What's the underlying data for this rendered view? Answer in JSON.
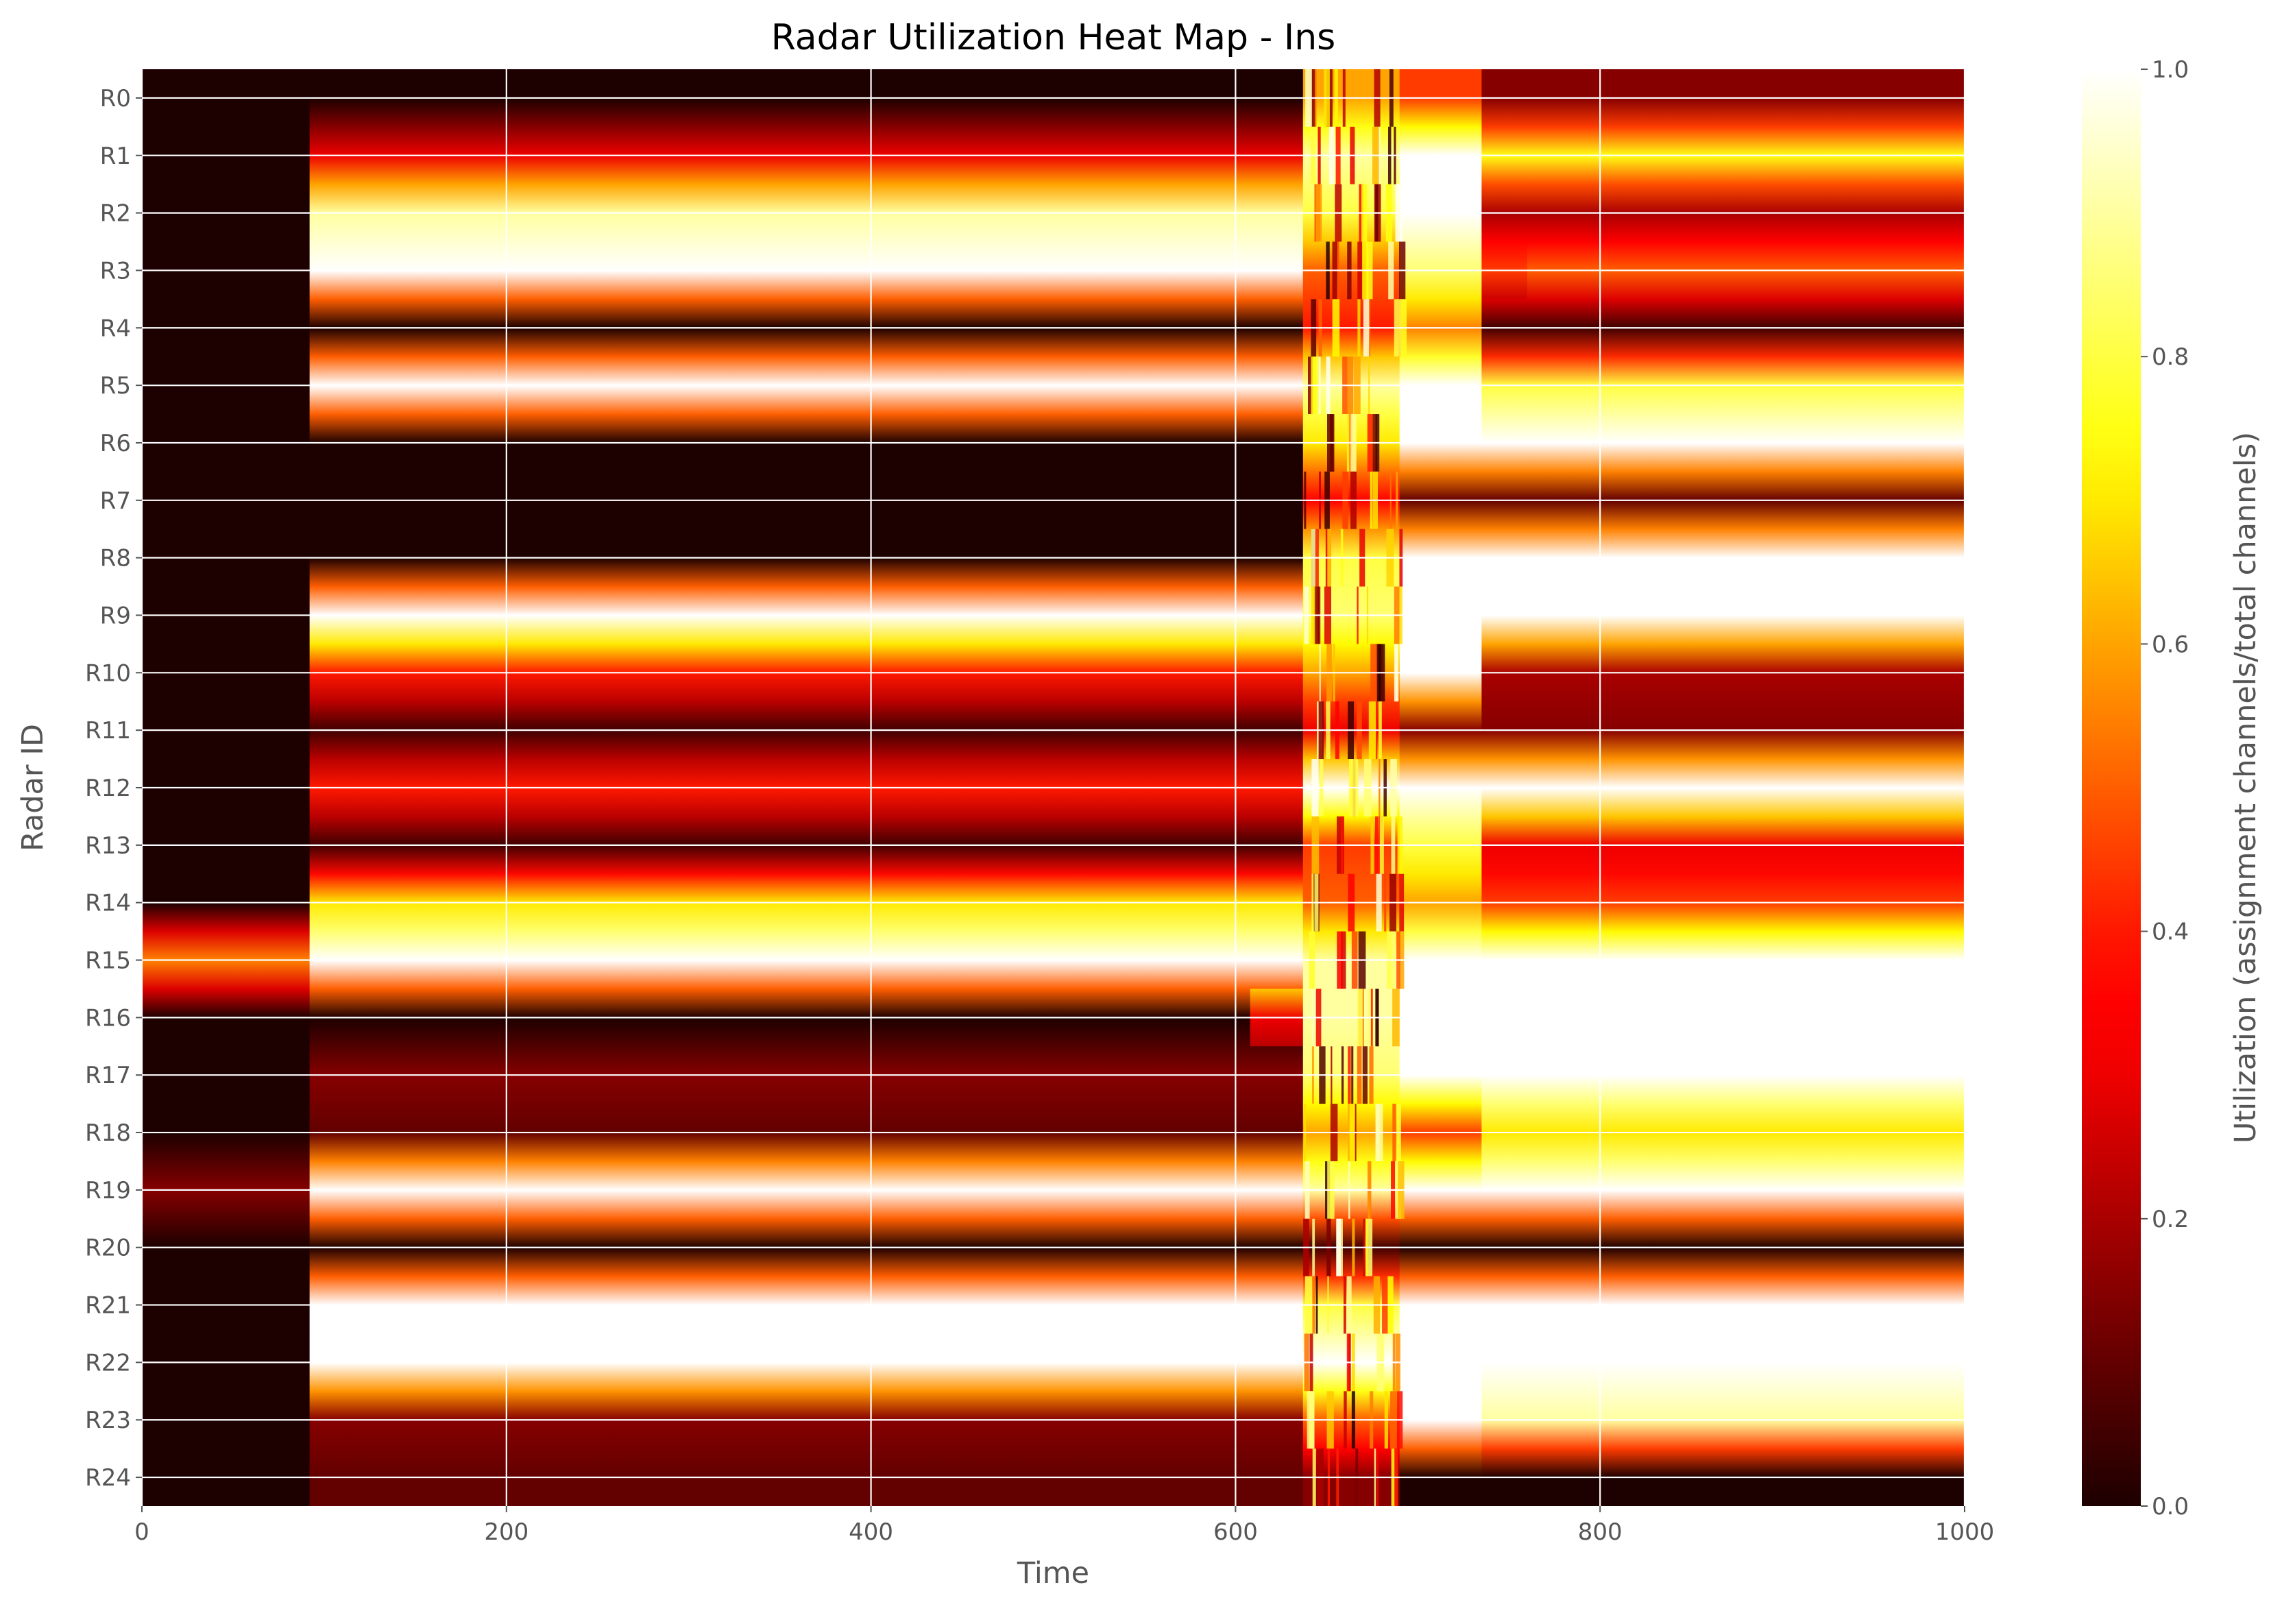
{
  "chart_data": {
    "type": "heatmap",
    "title": "Radar Utilization Heat Map - Ins",
    "xlabel": "Time",
    "ylabel": "Radar ID",
    "xlim": [
      0,
      1000
    ],
    "x_ticks": [
      "0",
      "200",
      "400",
      "600",
      "800",
      "1000"
    ],
    "rows": [
      "R0",
      "R1",
      "R2",
      "R3",
      "R4",
      "R5",
      "R6",
      "R7",
      "R8",
      "R9",
      "R10",
      "R11",
      "R12",
      "R13",
      "R14",
      "R15",
      "R16",
      "R17",
      "R18",
      "R19",
      "R20",
      "R21",
      "R22",
      "R23",
      "R24"
    ],
    "colorbar": {
      "label": "Utilization (assignment channels/total channels)",
      "range": [
        0.0,
        1.0
      ],
      "ticks": [
        "0.0",
        "0.2",
        "0.4",
        "0.6",
        "0.8",
        "1.0"
      ],
      "colormap": "hot"
    },
    "grid": true,
    "segments": {
      "R0": [
        [
          0,
          92,
          0.0
        ],
        [
          92,
          637,
          0.0
        ],
        [
          637,
          690,
          0.6
        ],
        [
          690,
          735,
          0.45
        ],
        [
          735,
          1000,
          0.15
        ]
      ],
      "R1": [
        [
          0,
          92,
          0.0
        ],
        [
          92,
          637,
          0.3
        ],
        [
          637,
          690,
          0.9
        ],
        [
          690,
          735,
          1.0
        ],
        [
          735,
          1000,
          0.75
        ]
      ],
      "R2": [
        [
          0,
          92,
          0.0
        ],
        [
          92,
          637,
          0.9
        ],
        [
          637,
          690,
          0.8
        ],
        [
          690,
          735,
          1.0
        ],
        [
          735,
          1000,
          0.2
        ]
      ],
      "R3": [
        [
          0,
          92,
          0.0
        ],
        [
          92,
          637,
          1.0
        ],
        [
          637,
          690,
          0.5
        ],
        [
          690,
          735,
          0.85
        ],
        [
          735,
          760,
          0.45
        ],
        [
          760,
          1000,
          0.5
        ]
      ],
      "R4": [
        [
          0,
          92,
          0.0
        ],
        [
          92,
          637,
          0.0
        ],
        [
          637,
          690,
          0.4
        ],
        [
          690,
          735,
          0.55
        ],
        [
          735,
          1000,
          0.05
        ]
      ],
      "R5": [
        [
          0,
          92,
          0.0
        ],
        [
          92,
          637,
          1.0
        ],
        [
          637,
          690,
          0.9
        ],
        [
          690,
          735,
          1.0
        ],
        [
          735,
          1000,
          0.8
        ]
      ],
      "R6": [
        [
          0,
          92,
          0.0
        ],
        [
          92,
          637,
          0.0
        ],
        [
          637,
          690,
          0.7
        ],
        [
          690,
          735,
          1.0
        ],
        [
          735,
          1000,
          1.0
        ]
      ],
      "R7": [
        [
          0,
          92,
          0.0
        ],
        [
          92,
          637,
          0.0
        ],
        [
          637,
          690,
          0.35
        ],
        [
          690,
          735,
          0.1
        ],
        [
          735,
          1000,
          0.1
        ]
      ],
      "R8": [
        [
          0,
          92,
          0.0
        ],
        [
          92,
          637,
          0.0
        ],
        [
          637,
          690,
          0.8
        ],
        [
          690,
          735,
          1.0
        ],
        [
          735,
          1000,
          1.0
        ]
      ],
      "R9": [
        [
          0,
          92,
          0.0
        ],
        [
          92,
          637,
          1.0
        ],
        [
          637,
          690,
          0.85
        ],
        [
          690,
          735,
          1.0
        ],
        [
          735,
          1000,
          1.0
        ]
      ],
      "R10": [
        [
          0,
          92,
          0.0
        ],
        [
          92,
          637,
          0.4
        ],
        [
          637,
          690,
          0.6
        ],
        [
          690,
          735,
          1.0
        ],
        [
          735,
          1000,
          0.2
        ]
      ],
      "R11": [
        [
          0,
          92,
          0.0
        ],
        [
          92,
          637,
          0.05
        ],
        [
          637,
          690,
          0.3
        ],
        [
          690,
          735,
          0.15
        ],
        [
          735,
          1000,
          0.15
        ]
      ],
      "R12": [
        [
          0,
          92,
          0.0
        ],
        [
          92,
          637,
          0.4
        ],
        [
          637,
          690,
          1.0
        ],
        [
          690,
          735,
          1.0
        ],
        [
          735,
          1000,
          1.0
        ]
      ],
      "R13": [
        [
          0,
          92,
          0.0
        ],
        [
          92,
          637,
          0.05
        ],
        [
          637,
          690,
          0.45
        ],
        [
          690,
          735,
          0.8
        ],
        [
          735,
          1000,
          0.3
        ]
      ],
      "R14": [
        [
          0,
          92,
          0.0
        ],
        [
          92,
          637,
          0.7
        ],
        [
          637,
          690,
          0.5
        ],
        [
          690,
          735,
          0.6
        ],
        [
          735,
          1000,
          0.45
        ]
      ],
      "R15": [
        [
          0,
          92,
          0.55
        ],
        [
          92,
          637,
          1.0
        ],
        [
          637,
          690,
          0.9
        ],
        [
          690,
          735,
          1.0
        ],
        [
          735,
          1000,
          1.0
        ]
      ],
      "R16": [
        [
          0,
          92,
          0.0
        ],
        [
          92,
          608,
          0.0
        ],
        [
          608,
          637,
          0.3
        ],
        [
          637,
          690,
          0.9
        ],
        [
          690,
          735,
          1.0
        ],
        [
          735,
          1000,
          1.0
        ]
      ],
      "R17": [
        [
          0,
          92,
          0.0
        ],
        [
          92,
          637,
          0.15
        ],
        [
          637,
          690,
          0.85
        ],
        [
          690,
          735,
          1.0
        ],
        [
          735,
          1000,
          1.0
        ]
      ],
      "R18": [
        [
          0,
          92,
          0.0
        ],
        [
          92,
          637,
          0.1
        ],
        [
          637,
          690,
          0.6
        ],
        [
          690,
          735,
          0.45
        ],
        [
          735,
          1000,
          0.7
        ]
      ],
      "R19": [
        [
          0,
          92,
          0.15
        ],
        [
          92,
          637,
          1.0
        ],
        [
          637,
          690,
          0.9
        ],
        [
          690,
          735,
          1.0
        ],
        [
          735,
          1000,
          1.0
        ]
      ],
      "R20": [
        [
          0,
          92,
          0.0
        ],
        [
          92,
          637,
          0.0
        ],
        [
          637,
          690,
          0.05
        ],
        [
          690,
          735,
          0.0
        ],
        [
          735,
          1000,
          0.0
        ]
      ],
      "R21": [
        [
          0,
          92,
          0.0
        ],
        [
          92,
          637,
          1.0
        ],
        [
          637,
          690,
          0.8
        ],
        [
          690,
          735,
          1.0
        ],
        [
          735,
          1000,
          1.0
        ]
      ],
      "R22": [
        [
          0,
          92,
          0.0
        ],
        [
          92,
          637,
          1.0
        ],
        [
          637,
          690,
          1.0
        ],
        [
          690,
          735,
          1.0
        ],
        [
          735,
          1000,
          1.0
        ]
      ],
      "R23": [
        [
          0,
          92,
          0.0
        ],
        [
          92,
          637,
          0.15
        ],
        [
          637,
          690,
          0.5
        ],
        [
          690,
          735,
          1.0
        ],
        [
          735,
          1000,
          0.9
        ]
      ],
      "R24": [
        [
          0,
          92,
          0.0
        ],
        [
          92,
          637,
          0.1
        ],
        [
          637,
          690,
          0.15
        ],
        [
          690,
          735,
          0.0
        ],
        [
          735,
          1000,
          0.0
        ]
      ]
    },
    "noise_region": [
      637,
      690
    ]
  }
}
